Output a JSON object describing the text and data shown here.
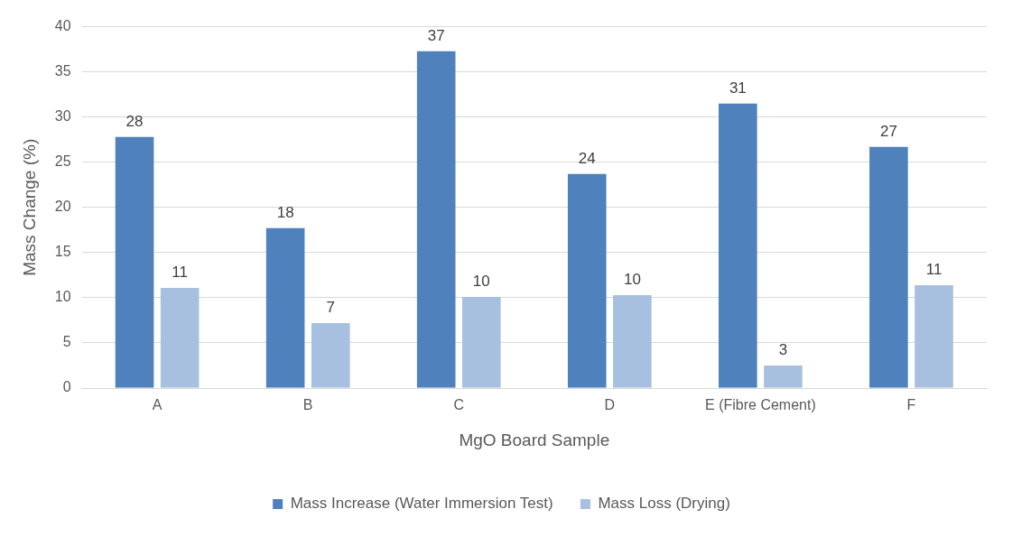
{
  "chart_data": {
    "type": "bar",
    "xlabel": "MgO Board Sample",
    "ylabel": "Mass Change (%)",
    "categories": [
      "A",
      "B",
      "C",
      "D",
      "E (Fibre Cement)",
      "F"
    ],
    "series": [
      {
        "name": "Mass Increase (Water Immersion Test)",
        "color": "#4f81bd",
        "values": [
          27.8,
          17.7,
          37.3,
          23.7,
          31.5,
          26.7
        ],
        "value_labels": [
          "28",
          "18",
          "37",
          "24",
          "31",
          "27"
        ]
      },
      {
        "name": "Mass Loss (Drying)",
        "color": "#a7c0e0",
        "values": [
          11.1,
          7.2,
          10.1,
          10.3,
          2.5,
          11.4
        ],
        "value_labels": [
          "11",
          "7",
          "10",
          "10",
          "3",
          "11"
        ]
      }
    ],
    "ylim": [
      0,
      40
    ],
    "yticks": [
      0,
      5,
      10,
      15,
      20,
      25,
      30,
      35,
      40
    ],
    "grid": "y",
    "legend": "bottom"
  }
}
